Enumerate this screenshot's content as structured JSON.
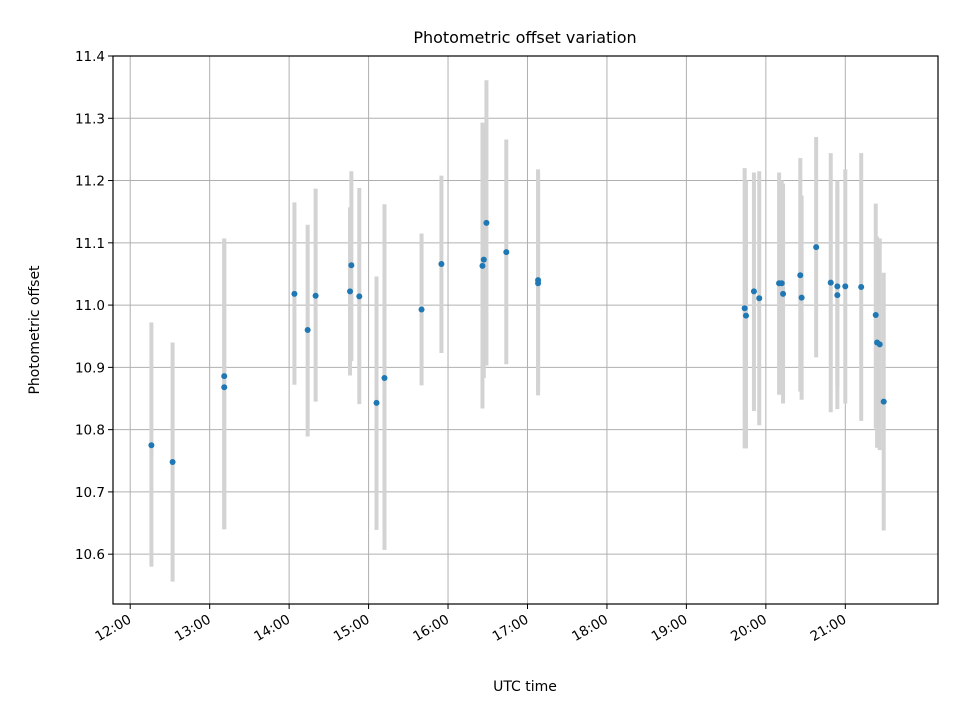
{
  "chart_data": {
    "type": "scatter",
    "title": "Photometric offset variation",
    "xlabel": "UTC time",
    "ylabel": "Photometric offset",
    "xlim": [
      "11:47",
      "22:10"
    ],
    "ylim": [
      10.52,
      11.4
    ],
    "xticks": [
      "12:00",
      "13:00",
      "14:00",
      "15:00",
      "16:00",
      "17:00",
      "18:00",
      "19:00",
      "20:00",
      "21:00"
    ],
    "yticks": [
      "10.6",
      "10.7",
      "10.8",
      "10.9",
      "11.0",
      "11.1",
      "11.2",
      "11.3",
      "11.4"
    ],
    "grid": true,
    "legend": "none",
    "marker_color": "#1f77b4",
    "errorbar_color": "#d3d3d3",
    "series": [
      {
        "points": [
          {
            "x": "12:16",
            "y": 10.775,
            "ylow": 10.58,
            "yhigh": 10.972
          },
          {
            "x": "12:32",
            "y": 10.748,
            "ylow": 10.556,
            "yhigh": 10.94
          },
          {
            "x": "13:11",
            "y": 10.886,
            "ylow": 10.64,
            "yhigh": 11.107
          },
          {
            "x": "13:11",
            "y": 10.868,
            "ylow": 10.64,
            "yhigh": 11.107
          },
          {
            "x": "14:04",
            "y": 11.018,
            "ylow": 10.872,
            "yhigh": 11.165
          },
          {
            "x": "14:14",
            "y": 10.96,
            "ylow": 10.789,
            "yhigh": 11.129
          },
          {
            "x": "14:20",
            "y": 11.015,
            "ylow": 10.845,
            "yhigh": 11.187
          },
          {
            "x": "14:46",
            "y": 11.022,
            "ylow": 10.887,
            "yhigh": 11.157
          },
          {
            "x": "14:47",
            "y": 11.064,
            "ylow": 10.91,
            "yhigh": 11.215
          },
          {
            "x": "14:53",
            "y": 11.014,
            "ylow": 10.841,
            "yhigh": 11.188
          },
          {
            "x": "15:06",
            "y": 10.843,
            "ylow": 10.639,
            "yhigh": 11.046
          },
          {
            "x": "15:12",
            "y": 10.883,
            "ylow": 10.607,
            "yhigh": 11.162
          },
          {
            "x": "15:40",
            "y": 10.993,
            "ylow": 10.871,
            "yhigh": 11.115
          },
          {
            "x": "15:55",
            "y": 11.066,
            "ylow": 10.923,
            "yhigh": 11.208
          },
          {
            "x": "16:26",
            "y": 11.063,
            "ylow": 10.834,
            "yhigh": 11.293
          },
          {
            "x": "16:27",
            "y": 11.073,
            "ylow": 10.883,
            "yhigh": 11.285
          },
          {
            "x": "16:29",
            "y": 11.132,
            "ylow": 10.903,
            "yhigh": 11.361
          },
          {
            "x": "16:44",
            "y": 11.085,
            "ylow": 10.905,
            "yhigh": 11.266
          },
          {
            "x": "17:08",
            "y": 11.04,
            "ylow": 10.862,
            "yhigh": 11.218
          },
          {
            "x": "17:08",
            "y": 11.035,
            "ylow": 10.855,
            "yhigh": 11.212
          },
          {
            "x": "19:44",
            "y": 10.995,
            "ylow": 10.77,
            "yhigh": 11.22
          },
          {
            "x": "19:45",
            "y": 10.983,
            "ylow": 10.77,
            "yhigh": 11.2
          },
          {
            "x": "19:51",
            "y": 11.022,
            "ylow": 10.83,
            "yhigh": 11.213
          },
          {
            "x": "19:55",
            "y": 11.011,
            "ylow": 10.807,
            "yhigh": 11.215
          },
          {
            "x": "20:10",
            "y": 11.035,
            "ylow": 10.856,
            "yhigh": 11.213
          },
          {
            "x": "20:12",
            "y": 11.035,
            "ylow": 10.86,
            "yhigh": 11.2
          },
          {
            "x": "20:13",
            "y": 11.018,
            "ylow": 10.842,
            "yhigh": 11.195
          },
          {
            "x": "20:26",
            "y": 11.048,
            "ylow": 10.861,
            "yhigh": 11.236
          },
          {
            "x": "20:27",
            "y": 11.012,
            "ylow": 10.848,
            "yhigh": 11.176
          },
          {
            "x": "20:38",
            "y": 11.093,
            "ylow": 10.916,
            "yhigh": 11.27
          },
          {
            "x": "20:49",
            "y": 11.036,
            "ylow": 10.828,
            "yhigh": 11.244
          },
          {
            "x": "20:54",
            "y": 11.03,
            "ylow": 10.833,
            "yhigh": 11.2
          },
          {
            "x": "20:54",
            "y": 11.016,
            "ylow": 10.87,
            "yhigh": 11.19
          },
          {
            "x": "21:00",
            "y": 11.03,
            "ylow": 10.842,
            "yhigh": 11.218
          },
          {
            "x": "21:12",
            "y": 11.029,
            "ylow": 10.814,
            "yhigh": 11.244
          },
          {
            "x": "21:23",
            "y": 10.984,
            "ylow": 10.802,
            "yhigh": 11.163
          },
          {
            "x": "21:24",
            "y": 10.94,
            "ylow": 10.771,
            "yhigh": 11.11
          },
          {
            "x": "21:26",
            "y": 10.937,
            "ylow": 10.767,
            "yhigh": 11.107
          },
          {
            "x": "21:29",
            "y": 10.845,
            "ylow": 10.638,
            "yhigh": 11.052
          }
        ]
      }
    ]
  }
}
